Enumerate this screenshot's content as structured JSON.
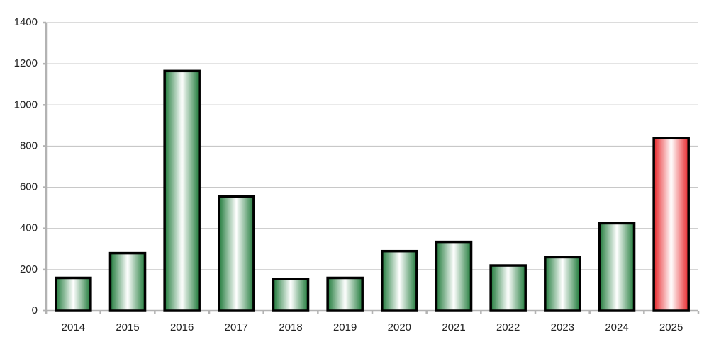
{
  "chart_data": {
    "type": "bar",
    "categories": [
      "2014",
      "2015",
      "2016",
      "2017",
      "2018",
      "2019",
      "2020",
      "2021",
      "2022",
      "2023",
      "2024",
      "2025"
    ],
    "values": [
      160,
      280,
      1165,
      555,
      155,
      160,
      290,
      335,
      220,
      260,
      425,
      840
    ],
    "colors": [
      "#1f7a3a",
      "#1f7a3a",
      "#1f7a3a",
      "#1f7a3a",
      "#1f7a3a",
      "#1f7a3a",
      "#1f7a3a",
      "#1f7a3a",
      "#1f7a3a",
      "#1f7a3a",
      "#1f7a3a",
      "#e8262a"
    ],
    "ylim": [
      0,
      1400
    ],
    "yticks": [
      0,
      200,
      400,
      600,
      800,
      1000,
      1200,
      1400
    ],
    "grid": true
  }
}
